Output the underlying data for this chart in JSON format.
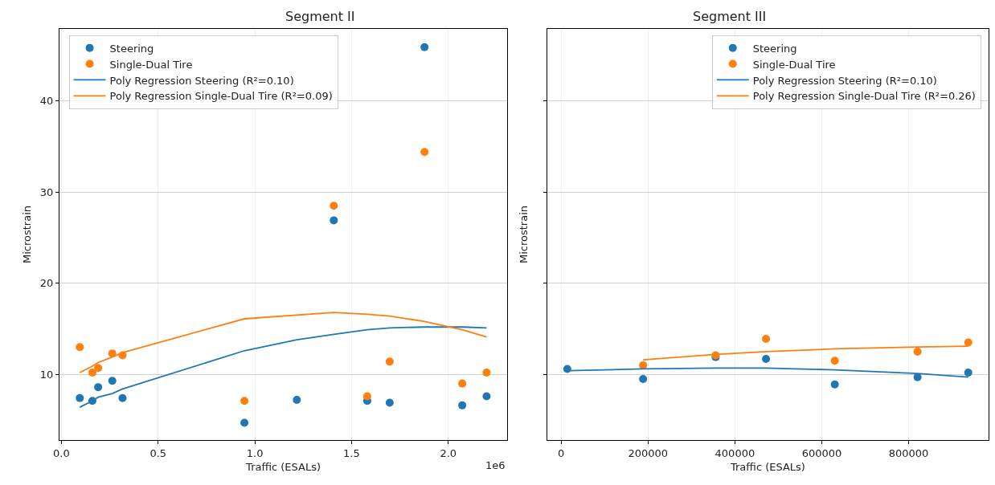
{
  "chart_data": [
    {
      "type": "scatter",
      "title": "Segment II",
      "xlabel": "Traffic (ESALs)",
      "ylabel": "Microstrain",
      "xlim": [
        -0.01,
        2.305
      ],
      "xticks": [
        {
          "value": 0,
          "label": "0.0"
        },
        0.5,
        {
          "value": 1,
          "label": "1.0"
        },
        1.5,
        {
          "value": 2,
          "label": "2.0"
        }
      ],
      "ylim": [
        2.8,
        47.9
      ],
      "yticks": [
        10,
        20,
        30,
        40
      ],
      "grid": true,
      "legend": "top left",
      "marker": "circle",
      "annotations": [
        "1e6"
      ],
      "series": [
        {
          "name": "Steering",
          "color": "#1f77b4",
          "x": [
            0.095,
            0.16,
            0.19,
            0.263,
            0.316,
            0.946,
            1.217,
            1.408,
            1.581,
            1.697,
            1.877,
            2.072,
            2.198
          ],
          "values": [
            7.4,
            7.1,
            8.6,
            9.3,
            7.4,
            4.7,
            7.2,
            26.9,
            7.1,
            6.9,
            45.9,
            6.6,
            7.6
          ]
        },
        {
          "name": "Single-Dual Tire",
          "color": "#ff7f0e",
          "x": [
            0.095,
            0.16,
            0.19,
            0.263,
            0.316,
            0.946,
            1.408,
            1.581,
            1.697,
            1.877,
            2.072,
            2.198
          ],
          "values": [
            13.0,
            10.2,
            10.7,
            12.3,
            12.1,
            7.1,
            28.5,
            7.6,
            11.4,
            34.4,
            9.0,
            10.2
          ]
        },
        {
          "name": "Poly Regression Steering (R²=0.10)",
          "type": "line",
          "marker": "none",
          "color": "#1f77b4",
          "x": [
            0.095,
            0.16,
            0.19,
            0.263,
            0.316,
            0.946,
            1.217,
            1.408,
            1.581,
            1.697,
            1.877,
            2.072,
            2.198
          ],
          "values": [
            6.4,
            7.1,
            7.5,
            7.9,
            8.4,
            12.6,
            13.8,
            14.4,
            14.9,
            15.1,
            15.2,
            15.2,
            15.1
          ]
        },
        {
          "name": "Poly Regression Single-Dual Tire (R²=0.09)",
          "type": "line",
          "marker": "none",
          "color": "#ff7f0e",
          "x": [
            0.095,
            0.16,
            0.19,
            0.263,
            0.316,
            0.946,
            1.408,
            1.581,
            1.697,
            1.877,
            2.072,
            2.198
          ],
          "values": [
            10.2,
            10.9,
            11.3,
            11.9,
            12.4,
            16.1,
            16.8,
            16.6,
            16.4,
            15.8,
            14.9,
            14.1
          ]
        }
      ]
    },
    {
      "type": "scatter",
      "title": "Segment III",
      "xlabel": "Traffic (ESALs)",
      "ylabel": "Microstrain",
      "xlim": [
        -32000,
        984000
      ],
      "xticks": [
        0,
        200000,
        400000,
        600000,
        800000
      ],
      "ylim": [
        2.8,
        47.9
      ],
      "yticks": [
        10,
        20,
        30,
        40
      ],
      "tick_labels": "x",
      "grid": true,
      "legend": "top right",
      "marker": "circle",
      "series": [
        {
          "name": "Steering",
          "color": "#1f77b4",
          "x": [
            14100,
            188600,
            355600,
            471600,
            630000,
            820500,
            937300
          ],
          "values": [
            10.6,
            9.5,
            11.9,
            11.7,
            8.9,
            9.7,
            10.2
          ]
        },
        {
          "name": "Single-Dual Tire",
          "color": "#ff7f0e",
          "x": [
            188600,
            355600,
            471600,
            630000,
            820500,
            937300
          ],
          "values": [
            11.0,
            12.1,
            13.9,
            11.5,
            12.5,
            13.5
          ]
        },
        {
          "name": "Poly Regression Steering (R²=0.10)",
          "type": "line",
          "marker": "none",
          "color": "#1f77b4",
          "x": [
            14100,
            188600,
            355600,
            471600,
            630000,
            820500,
            937300
          ],
          "values": [
            10.4,
            10.6,
            10.7,
            10.7,
            10.5,
            10.1,
            9.7
          ]
        },
        {
          "name": "Poly Regression Single-Dual Tire (R²=0.26)",
          "type": "line",
          "marker": "none",
          "color": "#ff7f0e",
          "x": [
            188600,
            355600,
            471600,
            630000,
            820500,
            937300
          ],
          "values": [
            11.6,
            12.2,
            12.5,
            12.8,
            13.0,
            13.1
          ]
        }
      ]
    }
  ]
}
